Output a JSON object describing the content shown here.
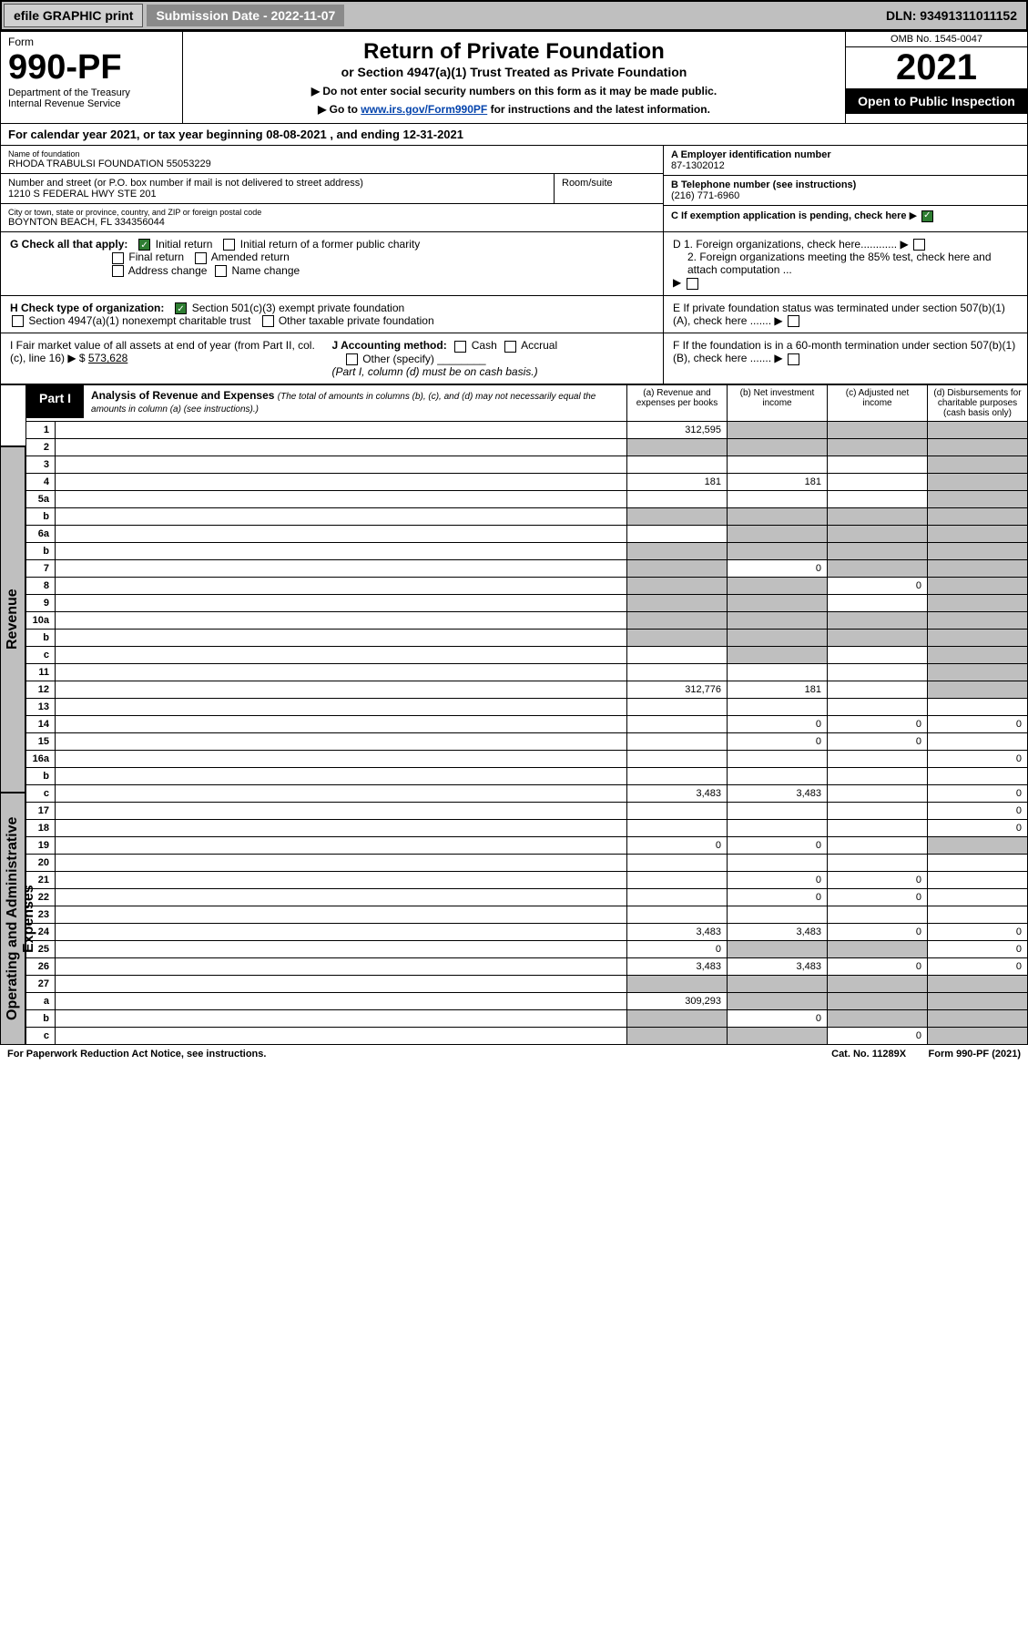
{
  "top": {
    "efile": "efile GRAPHIC print",
    "sub_label": "Submission Date - 2022-11-07",
    "dln": "DLN: 93491311011152"
  },
  "header": {
    "form": "Form",
    "num": "990-PF",
    "dept": "Department of the Treasury\nInternal Revenue Service",
    "title": "Return of Private Foundation",
    "subtitle": "or Section 4947(a)(1) Trust Treated as Private Foundation",
    "note1": "▶ Do not enter social security numbers on this form as it may be made public.",
    "note2_pre": "▶ Go to ",
    "note2_link": "www.irs.gov/Form990PF",
    "note2_post": " for instructions and the latest information.",
    "omb": "OMB No. 1545-0047",
    "year": "2021",
    "open": "Open to Public Inspection"
  },
  "cal": "For calendar year 2021, or tax year beginning 08-08-2021                    , and ending 12-31-2021",
  "found": {
    "name_lbl": "Name of foundation",
    "name": "RHODA TRABULSI FOUNDATION 55053229",
    "addr_lbl": "Number and street (or P.O. box number if mail is not delivered to street address)",
    "addr": "1210 S FEDERAL HWY STE 201",
    "room_lbl": "Room/suite",
    "city_lbl": "City or town, state or province, country, and ZIP or foreign postal code",
    "city": "BOYNTON BEACH, FL  334356044",
    "a_lbl": "A Employer identification number",
    "a": "87-1302012",
    "b_lbl": "B Telephone number (see instructions)",
    "b": "(216) 771-6960",
    "c_lbl": "C If exemption application is pending, check here"
  },
  "g": {
    "lbl": "G Check all that apply:",
    "initial": "Initial return",
    "final": "Final return",
    "addr": "Address change",
    "initial_pub": "Initial return of a former public charity",
    "amended": "Amended return",
    "name": "Name change"
  },
  "h": {
    "lbl": "H Check type of organization:",
    "s501": "Section 501(c)(3) exempt private foundation",
    "s4947": "Section 4947(a)(1) nonexempt charitable trust",
    "other_tax": "Other taxable private foundation"
  },
  "i": {
    "lbl": "I Fair market value of all assets at end of year (from Part II, col. (c), line 16) ▶ $ ",
    "val": "573,628"
  },
  "j": {
    "lbl": "J Accounting method:",
    "cash": "Cash",
    "accrual": "Accrual",
    "other": "Other (specify)",
    "note": "(Part I, column (d) must be on cash basis.)"
  },
  "d": {
    "d1": "D 1. Foreign organizations, check here............",
    "d2": "2. Foreign organizations meeting the 85% test, check here and attach computation ...",
    "e": "E  If private foundation status was terminated under section 507(b)(1)(A), check here .......",
    "f": "F  If the foundation is in a 60-month termination under section 507(b)(1)(B), check here ......."
  },
  "part1": {
    "tag": "Part I",
    "title": "Analysis of Revenue and Expenses ",
    "sub": "(The total of amounts in columns (b), (c), and (d) may not necessarily equal the amounts in column (a) (see instructions).)",
    "cols": {
      "a": "(a)   Revenue and expenses per books",
      "b": "(b)   Net investment income",
      "c": "(c)   Adjusted net income",
      "d": "(d)  Disbursements for charitable purposes (cash basis only)"
    }
  },
  "rows": [
    {
      "n": "1",
      "d": "",
      "a": "312,595",
      "b": "",
      "c": "",
      "grey_bcd": true,
      "sec": "rev"
    },
    {
      "n": "2",
      "d": "",
      "a": "",
      "b": "",
      "c": "",
      "grey_all": true,
      "sec": "rev"
    },
    {
      "n": "3",
      "d": "",
      "a": "",
      "b": "",
      "c": "",
      "grey_d": true,
      "sec": "rev"
    },
    {
      "n": "4",
      "d": "",
      "a": "181",
      "b": "181",
      "c": "",
      "grey_d": true,
      "sec": "rev"
    },
    {
      "n": "5a",
      "d": "",
      "a": "",
      "b": "",
      "c": "",
      "grey_d": true,
      "sec": "rev"
    },
    {
      "n": "b",
      "d": "",
      "a": "",
      "b": "",
      "c": "",
      "grey_all": true,
      "sec": "rev"
    },
    {
      "n": "6a",
      "d": "",
      "a": "",
      "b": "",
      "c": "",
      "grey_bcd": true,
      "sec": "rev"
    },
    {
      "n": "b",
      "d": "",
      "a": "",
      "b": "",
      "c": "",
      "grey_all": true,
      "sec": "rev"
    },
    {
      "n": "7",
      "d": "",
      "a": "",
      "b": "0",
      "c": "",
      "grey_a": true,
      "grey_cd": true,
      "sec": "rev"
    },
    {
      "n": "8",
      "d": "",
      "a": "",
      "b": "",
      "c": "0",
      "grey_ab": true,
      "grey_d": true,
      "sec": "rev"
    },
    {
      "n": "9",
      "d": "",
      "a": "",
      "b": "",
      "c": "",
      "grey_ab": true,
      "grey_d": true,
      "sec": "rev"
    },
    {
      "n": "10a",
      "d": "",
      "a": "",
      "b": "",
      "c": "",
      "grey_all": true,
      "sec": "rev"
    },
    {
      "n": "b",
      "d": "",
      "a": "",
      "b": "",
      "c": "",
      "grey_all": true,
      "sec": "rev"
    },
    {
      "n": "c",
      "d": "",
      "a": "",
      "b": "",
      "c": "",
      "grey_b": true,
      "grey_d": true,
      "sec": "rev"
    },
    {
      "n": "11",
      "d": "",
      "a": "",
      "b": "",
      "c": "",
      "grey_d": true,
      "sec": "rev"
    },
    {
      "n": "12",
      "d": "",
      "a": "312,776",
      "b": "181",
      "c": "",
      "grey_d": true,
      "bold": true,
      "sec": "rev"
    },
    {
      "n": "13",
      "d": "",
      "a": "",
      "b": "",
      "c": "",
      "sec": "exp"
    },
    {
      "n": "14",
      "d": "0",
      "a": "",
      "b": "0",
      "c": "0",
      "sec": "exp"
    },
    {
      "n": "15",
      "d": "",
      "a": "",
      "b": "0",
      "c": "0",
      "sec": "exp"
    },
    {
      "n": "16a",
      "d": "0",
      "a": "",
      "b": "",
      "c": "",
      "sec": "exp"
    },
    {
      "n": "b",
      "d": "",
      "a": "",
      "b": "",
      "c": "",
      "sec": "exp"
    },
    {
      "n": "c",
      "d": "0",
      "a": "3,483",
      "b": "3,483",
      "c": "",
      "sec": "exp"
    },
    {
      "n": "17",
      "d": "0",
      "a": "",
      "b": "",
      "c": "",
      "sec": "exp"
    },
    {
      "n": "18",
      "d": "0",
      "a": "",
      "b": "",
      "c": "",
      "sec": "exp"
    },
    {
      "n": "19",
      "d": "",
      "a": "0",
      "b": "0",
      "c": "",
      "grey_d": true,
      "sec": "exp"
    },
    {
      "n": "20",
      "d": "",
      "a": "",
      "b": "",
      "c": "",
      "sec": "exp"
    },
    {
      "n": "21",
      "d": "",
      "a": "",
      "b": "0",
      "c": "0",
      "sec": "exp"
    },
    {
      "n": "22",
      "d": "",
      "a": "",
      "b": "0",
      "c": "0",
      "sec": "exp"
    },
    {
      "n": "23",
      "d": "",
      "a": "",
      "b": "",
      "c": "",
      "sec": "exp"
    },
    {
      "n": "24",
      "d": "0",
      "a": "3,483",
      "b": "3,483",
      "c": "0",
      "bold": true,
      "sec": "exp"
    },
    {
      "n": "25",
      "d": "0",
      "a": "0",
      "b": "",
      "c": "",
      "grey_bc": true,
      "sec": "exp"
    },
    {
      "n": "26",
      "d": "0",
      "a": "3,483",
      "b": "3,483",
      "c": "0",
      "bold": true,
      "sec": "exp"
    },
    {
      "n": "27",
      "d": "",
      "a": "",
      "b": "",
      "c": "",
      "grey_all": true,
      "sec": "none"
    },
    {
      "n": "a",
      "d": "",
      "a": "309,293",
      "b": "",
      "c": "",
      "grey_bcd": true,
      "bold": true,
      "sec": "none"
    },
    {
      "n": "b",
      "d": "",
      "a": "",
      "b": "0",
      "c": "",
      "grey_a": true,
      "grey_cd": true,
      "bold": true,
      "sec": "none"
    },
    {
      "n": "c",
      "d": "",
      "a": "",
      "b": "",
      "c": "0",
      "grey_ab": true,
      "grey_d": true,
      "bold": true,
      "sec": "none"
    }
  ],
  "sides": {
    "rev": "Revenue",
    "exp": "Operating and Administrative Expenses"
  },
  "footer": {
    "pra": "For Paperwork Reduction Act Notice, see instructions.",
    "cat": "Cat. No. 11289X",
    "form": "Form 990-PF (2021)"
  }
}
